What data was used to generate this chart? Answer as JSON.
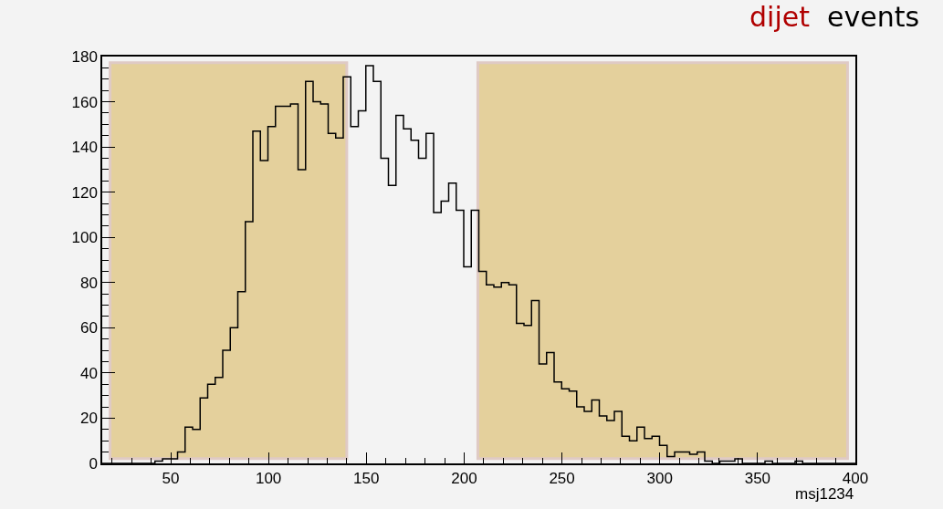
{
  "chart_data": {
    "type": "histogram",
    "title": "dijet events",
    "xlabel": "msj1234",
    "bins": [
      15,
      18.85,
      22.7,
      26.55,
      30.4,
      34.25,
      38.1,
      41.95,
      45.8,
      49.65,
      53.5,
      57.35,
      61.2,
      65.05,
      68.9,
      72.75,
      76.6,
      80.45,
      84.3,
      88.15,
      92,
      95.85,
      99.7,
      103.55,
      107.4,
      111.25,
      115.1,
      118.95,
      122.8,
      126.65,
      130.5,
      134.35,
      138.2,
      142.05,
      145.9,
      149.75,
      153.6,
      157.45,
      161.3,
      165.15,
      169,
      172.85,
      176.7,
      180.55,
      184.4,
      188.25,
      192.1,
      195.95,
      199.8,
      203.65,
      207.5,
      211.35,
      215.2,
      219.05,
      222.9,
      226.75,
      230.6,
      234.45,
      238.3,
      242.15,
      246,
      249.85,
      253.7,
      257.55,
      261.4,
      265.25,
      269.1,
      272.95,
      276.8,
      280.65,
      284.5,
      288.35,
      292.2,
      296.05,
      299.9,
      303.75,
      307.6,
      311.45,
      315.3,
      319.15,
      323,
      326.85,
      330.7,
      334.55,
      338.4,
      342.25,
      346.1,
      349.95,
      353.8,
      357.65,
      361.5,
      365.35,
      369.2,
      373.05,
      376.9,
      380.75,
      384.6,
      388.45,
      392.3,
      396.15,
      400
    ],
    "values": [
      0,
      0,
      0,
      0,
      0,
      0,
      0,
      1,
      2,
      2,
      5,
      16,
      15,
      29,
      35,
      38,
      50,
      60,
      76,
      107,
      147,
      134,
      149,
      158,
      158,
      159,
      130,
      169,
      160,
      159,
      146,
      144,
      171,
      149,
      156,
      176,
      169,
      135,
      123,
      154,
      148,
      143,
      135,
      146,
      111,
      116,
      124,
      112,
      87,
      112,
      85,
      79,
      78,
      80,
      79,
      62,
      61,
      72,
      44,
      49,
      36,
      33,
      32,
      25,
      23,
      28,
      21,
      19,
      23,
      12,
      10,
      16,
      11,
      12,
      8,
      3,
      5,
      5,
      4,
      5,
      1,
      0,
      1,
      1,
      2,
      0,
      0,
      0,
      1,
      0,
      0,
      0,
      1,
      0,
      0,
      0,
      0,
      0,
      0,
      0
    ],
    "color": "#000000",
    "xlim": [
      15,
      400
    ],
    "xticks": [
      50,
      100,
      150,
      200,
      250,
      300,
      350,
      400
    ],
    "ylim": [
      0,
      180
    ],
    "yticks": [
      0,
      20,
      40,
      60,
      80,
      100,
      120,
      140,
      160,
      180
    ],
    "bands": [
      {
        "axis": "x",
        "from": 19,
        "to": 140,
        "color": "#e2cb8e"
      },
      {
        "axis": "x",
        "from": 207,
        "to": 396,
        "color": "#e2cb8e"
      }
    ],
    "grid": false,
    "legend": false
  }
}
